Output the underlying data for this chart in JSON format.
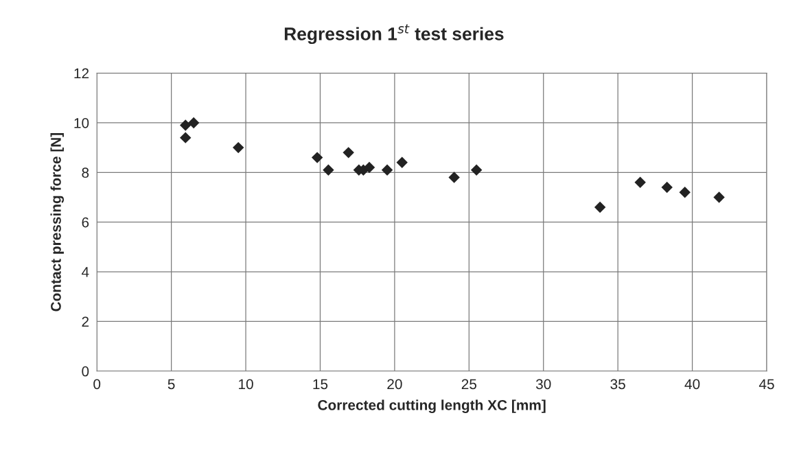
{
  "chart_data": {
    "type": "scatter",
    "title": "Regression 1$^{st}$ test series",
    "xlabel": "Corrected cutting length XC [mm]",
    "ylabel": "Contact pressing force [N]",
    "x": [
      5.95,
      6.5,
      5.95,
      9.5,
      14.8,
      15.55,
      16.9,
      17.6,
      17.9,
      18.3,
      19.5,
      20.5,
      24.0,
      25.5,
      33.8,
      36.5,
      38.3,
      39.5,
      41.8
    ],
    "series": [
      {
        "color": "#222222",
        "values": [
          9.9,
          10.0,
          9.4,
          9.0,
          8.6,
          8.1,
          8.8,
          8.1,
          8.1,
          8.2,
          8.1,
          8.4,
          7.8,
          8.1,
          6.6,
          7.6,
          7.4,
          7.2,
          7.0
        ]
      }
    ],
    "xlim": [
      0,
      45
    ],
    "xticks": [
      0,
      5,
      10,
      15,
      20,
      25,
      30,
      35,
      40,
      45
    ],
    "ylim": [
      0,
      12
    ],
    "yticks": [
      0,
      2,
      4,
      6,
      8,
      10,
      12
    ],
    "grid": true,
    "marker": "diamond",
    "legend": false
  }
}
